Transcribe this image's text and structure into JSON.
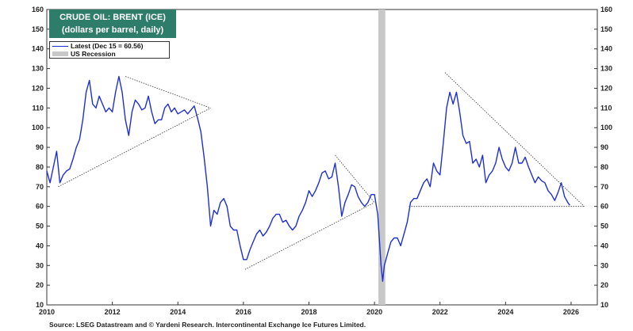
{
  "title_line1": "CRUDE OIL: BRENT (ICE)",
  "title_line2": "(dollars per barrel, daily)",
  "legend": {
    "latest_label": "Latest (Dec 15 = 60.56)",
    "recession_label": "US Recession"
  },
  "source": "Source: LSEG Datastream and © Yardeni Research. Intercontinental Exchange Ice Futures Limited.",
  "colors": {
    "series": "#1f2fd1",
    "recession": "#c8c8c8",
    "title_bg": "#2e7d6b",
    "trendline": "#333333"
  },
  "chart_data": {
    "type": "line",
    "title": "CRUDE OIL: BRENT (ICE)",
    "subtitle": "(dollars per barrel, daily)",
    "xlabel": "",
    "ylabel": "",
    "xlim": [
      2010,
      2026.8
    ],
    "ylim": [
      10,
      160
    ],
    "y_ticks": [
      10,
      20,
      30,
      40,
      50,
      60,
      70,
      80,
      90,
      100,
      110,
      120,
      130,
      140,
      150,
      160
    ],
    "x_ticks": [
      2010,
      2012,
      2014,
      2016,
      2018,
      2020,
      2022,
      2024,
      2026
    ],
    "grid": false,
    "legend_position": "top-left",
    "recessions": [
      [
        2020.12,
        2020.33
      ]
    ],
    "series": [
      {
        "name": "Latest (Dec 15 = 60.56)",
        "x": [
          2010.0,
          2010.1,
          2010.2,
          2010.3,
          2010.4,
          2010.5,
          2010.6,
          2010.7,
          2010.8,
          2010.9,
          2011.0,
          2011.1,
          2011.2,
          2011.3,
          2011.4,
          2011.5,
          2011.6,
          2011.7,
          2011.8,
          2011.9,
          2012.0,
          2012.1,
          2012.2,
          2012.3,
          2012.4,
          2012.5,
          2012.6,
          2012.7,
          2012.8,
          2012.9,
          2013.0,
          2013.1,
          2013.2,
          2013.3,
          2013.4,
          2013.5,
          2013.6,
          2013.7,
          2013.8,
          2013.9,
          2014.0,
          2014.1,
          2014.2,
          2014.3,
          2014.4,
          2014.5,
          2014.6,
          2014.7,
          2014.8,
          2014.9,
          2015.0,
          2015.1,
          2015.2,
          2015.3,
          2015.4,
          2015.5,
          2015.6,
          2015.7,
          2015.8,
          2015.9,
          2016.0,
          2016.1,
          2016.2,
          2016.3,
          2016.4,
          2016.5,
          2016.6,
          2016.7,
          2016.8,
          2016.9,
          2017.0,
          2017.1,
          2017.2,
          2017.3,
          2017.4,
          2017.5,
          2017.6,
          2017.7,
          2017.8,
          2017.9,
          2018.0,
          2018.1,
          2018.2,
          2018.3,
          2018.4,
          2018.5,
          2018.6,
          2018.7,
          2018.8,
          2018.9,
          2019.0,
          2019.1,
          2019.2,
          2019.3,
          2019.4,
          2019.5,
          2019.6,
          2019.7,
          2019.8,
          2019.9,
          2020.0,
          2020.1,
          2020.2,
          2020.25,
          2020.3,
          2020.4,
          2020.5,
          2020.6,
          2020.7,
          2020.8,
          2020.9,
          2021.0,
          2021.1,
          2021.2,
          2021.3,
          2021.4,
          2021.5,
          2021.6,
          2021.7,
          2021.8,
          2021.9,
          2022.0,
          2022.1,
          2022.2,
          2022.3,
          2022.4,
          2022.5,
          2022.6,
          2022.7,
          2022.8,
          2022.9,
          2023.0,
          2023.1,
          2023.2,
          2023.3,
          2023.4,
          2023.5,
          2023.6,
          2023.7,
          2023.8,
          2023.9,
          2024.0,
          2024.1,
          2024.2,
          2024.3,
          2024.4,
          2024.5,
          2024.6,
          2024.7,
          2024.8,
          2024.9,
          2025.0,
          2025.1,
          2025.2,
          2025.3,
          2025.4,
          2025.5,
          2025.6,
          2025.7,
          2025.8,
          2025.9,
          2025.96
        ],
        "values": [
          78,
          72,
          80,
          88,
          72,
          76,
          78,
          79,
          84,
          90,
          94,
          104,
          118,
          124,
          112,
          110,
          116,
          112,
          108,
          110,
          108,
          118,
          126,
          118,
          104,
          96,
          108,
          114,
          112,
          109,
          110,
          116,
          108,
          102,
          104,
          104,
          110,
          112,
          108,
          110,
          107,
          108,
          109,
          107,
          109,
          111,
          105,
          98,
          85,
          70,
          50,
          58,
          56,
          62,
          64,
          60,
          50,
          48,
          48,
          40,
          33,
          33,
          38,
          42,
          46,
          48,
          45,
          47,
          50,
          54,
          56,
          56,
          52,
          53,
          50,
          48,
          50,
          55,
          58,
          62,
          68,
          65,
          68,
          72,
          77,
          78,
          74,
          75,
          82,
          70,
          55,
          62,
          66,
          71,
          70,
          65,
          62,
          60,
          62,
          66,
          66,
          56,
          30,
          22,
          30,
          36,
          42,
          44,
          44,
          40,
          46,
          52,
          62,
          64,
          64,
          68,
          72,
          74,
          70,
          82,
          78,
          76,
          92,
          110,
          118,
          112,
          118,
          108,
          96,
          92,
          93,
          82,
          84,
          80,
          86,
          72,
          76,
          78,
          82,
          90,
          84,
          80,
          78,
          82,
          90,
          82,
          82,
          85,
          80,
          76,
          72,
          75,
          73,
          72,
          68,
          66,
          63,
          67,
          72,
          65,
          62,
          60.56
        ]
      }
    ],
    "trendlines": [
      {
        "from": [
          2010.35,
          70
        ],
        "to": [
          2015.0,
          110
        ]
      },
      {
        "from": [
          2012.4,
          126
        ],
        "to": [
          2015.0,
          110
        ]
      },
      {
        "from": [
          2016.05,
          28
        ],
        "to": [
          2020.0,
          62
        ]
      },
      {
        "from": [
          2018.8,
          86
        ],
        "to": [
          2020.0,
          62
        ]
      },
      {
        "from": [
          2022.15,
          128
        ],
        "to": [
          2026.4,
          60
        ]
      },
      {
        "from": [
          2021.05,
          60
        ],
        "to": [
          2026.4,
          60
        ]
      }
    ]
  }
}
